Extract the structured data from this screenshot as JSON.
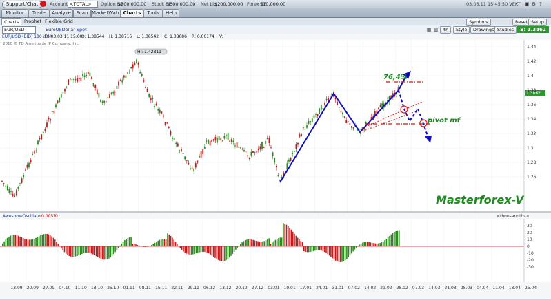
{
  "topbar": {
    "support_label": "Support/Chat",
    "account_label": "Account",
    "account_value": "<TOTAL> (A...",
    "option_bp_label": "Option BP",
    "option_bp_value": "$200,000.00",
    "stock_bp_label": "Stock BP",
    "stock_bp_value": "$300,000.00",
    "net_liq_label": "Net Liq",
    "net_liq_value": "$200,000.00",
    "forex_bp_label": "Forex BP",
    "forex_bp_value": "$10,000.00",
    "datetime": "03.03.11 15:45:50 VEKT"
  },
  "tabs": [
    "Monitor",
    "Trade",
    "Analyze",
    "Scan",
    "MarketWatch",
    "Charts",
    "Tools",
    "Help"
  ],
  "subtabs": [
    "Charts",
    "Prophet",
    "Flexible Grid"
  ],
  "toolbar": {
    "symbol": "EUR/USD",
    "description": "EuroUSDollar Spot",
    "timeframe": "4h",
    "style": "Style",
    "drawings": "Drawings",
    "studies": "Studies",
    "symbols": "Symbols",
    "reset": "Reset",
    "setup": "Setup",
    "bid_label": "B: 1.3862"
  },
  "info": {
    "header": "EUR/USD (BID) 180 d 4h",
    "d": "D: 03.03.11 15:00",
    "o": "O: 1.38544",
    "h": "H: 1.38716",
    "l": "L: 1.38542",
    "c": "C: 1.38686",
    "r": "R: 0.00174",
    "v": "V:",
    "copyright": "2010 © TD Ameritrade IP Company, Inc."
  },
  "annotations": {
    "hi_label": "Hi: 1.42811",
    "fib_label": "76,4%",
    "pivot_label": "pivot mf",
    "brand": "Masterforex-V"
  },
  "oscillator": {
    "name": "AwesomeOscillator",
    "value": "0.0057",
    "zero": "0",
    "right_label": "<thousandths>",
    "ticks": [
      "30",
      "20",
      "10",
      "0",
      "-10",
      "-20",
      "-30"
    ]
  },
  "price_axis": {
    "ticks": [
      "1.44",
      "1.42",
      "1.4",
      "1.38",
      "1.36",
      "1.34",
      "1.32",
      "1.3",
      "1.28",
      "1.26"
    ],
    "current": "1.3862"
  },
  "time_axis": [
    "13.09",
    "20.09",
    "27.09",
    "04.10",
    "11.10",
    "18.10",
    "25.10",
    "01.11",
    "08.11",
    "15.11",
    "22.11",
    "29.11",
    "06.12",
    "13.12",
    "20.12",
    "27.12",
    "03.01",
    "10.01",
    "17.01",
    "24.01",
    "31.01",
    "07.02",
    "14.02",
    "21.02",
    "28.02",
    "07.03",
    "14.03",
    "21.03",
    "28.03",
    "04.04",
    "11.04",
    "18.04",
    "25.04"
  ],
  "colors": {
    "up_candle": "#2d8a1f",
    "down_candle": "#c71a1a",
    "wave_line": "#1010c0",
    "fib_text": "#1e8a1e",
    "brand_text": "#1f8c1f",
    "level_line": "#d11",
    "price_tag_green": "#2a9a2a",
    "price_tag_red": "#d11"
  }
}
